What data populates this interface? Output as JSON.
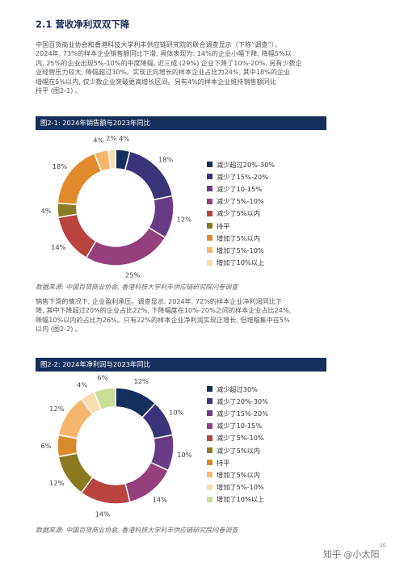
{
  "section_title": "2.1 营收净利双双下降",
  "para1": [
    "中国百货商业协会和香港科技大学利丰供应链研究院的联合调查显示（下称“调查”），",
    "2024年, 73%的样本企业销售额同比下滑, 具体表现为: 14%的企业小幅下降, 降幅5%以",
    "内, 25%的企业出现5%-10%的中度降幅, 近三成 (29%) 企业下降了10%-20%, 另有少数企",
    "业经营压力较大, 降幅超过30%。实现正向增长的样本企业占比为24%, 其中18%的企业",
    "增幅在5%以内, 仅少数企业突破更高增长区间。另有4%的样本企业维持销售额同比",
    "持平 (图2-1) 。"
  ],
  "para2": [
    "销售下滑的情况下, 企业盈利承压。调查显示, 2024年, 72%的样本企业净利润同比下",
    "降, 其中下降超过20%的企业占比22%, 下降幅度在10%-20%之间的样本企业占比24%,",
    "降幅10%以内的占比为26%。只有22%的样本企业净利润实现正增长, 但增幅集中在5%",
    "以内 (图2-2) 。"
  ],
  "source1": "数据来源: 中国百货商业协会, 香港科技大学利丰供应链研究院问卷调查",
  "source2": "数据来源: 中国百货商业协会, 香港科技大学利丰供应链研究院问卷调查",
  "watermark": "知乎 @小太阳",
  "page_number": "10",
  "chart_data": [
    {
      "type": "pie",
      "title": "图2-1: 2024年销售额与2023年同比",
      "categories": [
        "减少超过20%-30%",
        "减少了15%-20%",
        "减少了10-15%",
        "减少了5%-10%",
        "减少了5%以内",
        "持平",
        "增加了5%以内",
        "增加了5%-10%",
        "增加了10%以上"
      ],
      "values": [
        4,
        18,
        12,
        25,
        14,
        4,
        18,
        4,
        2
      ],
      "value_labels": [
        "4%",
        "18%",
        "12%",
        "25%",
        "14%",
        "4%",
        "18%",
        "4%",
        "2%"
      ],
      "colors": [
        "#16305e",
        "#3b3478",
        "#6a3b85",
        "#963f7d",
        "#b8433f",
        "#8c7a22",
        "#e08a2c",
        "#f4b66c",
        "#f6dcae"
      ],
      "legend": "right"
    },
    {
      "type": "pie",
      "title": "图2-2: 2024年净利润与2023年同比",
      "categories": [
        "减少超过30%",
        "减少了20%-30%",
        "减少了15%-20%",
        "减少了10-15%",
        "减少了5%-10%",
        "减少了5%以内",
        "持平",
        "增加了5%以内",
        "增加了5%-10%",
        "增加了10%以上"
      ],
      "values": [
        12,
        10,
        10,
        14,
        14,
        12,
        6,
        12,
        4,
        6
      ],
      "value_labels": [
        "12%",
        "10%",
        "10%",
        "14%",
        "14%",
        "12%",
        "6%",
        "12%",
        "4%",
        "6%"
      ],
      "colors": [
        "#16305e",
        "#3b3478",
        "#6a3b85",
        "#963f7d",
        "#b8433f",
        "#8c7a22",
        "#d98a2c",
        "#f4b66c",
        "#f6dcae",
        "#c9de98"
      ],
      "legend": "right"
    }
  ]
}
